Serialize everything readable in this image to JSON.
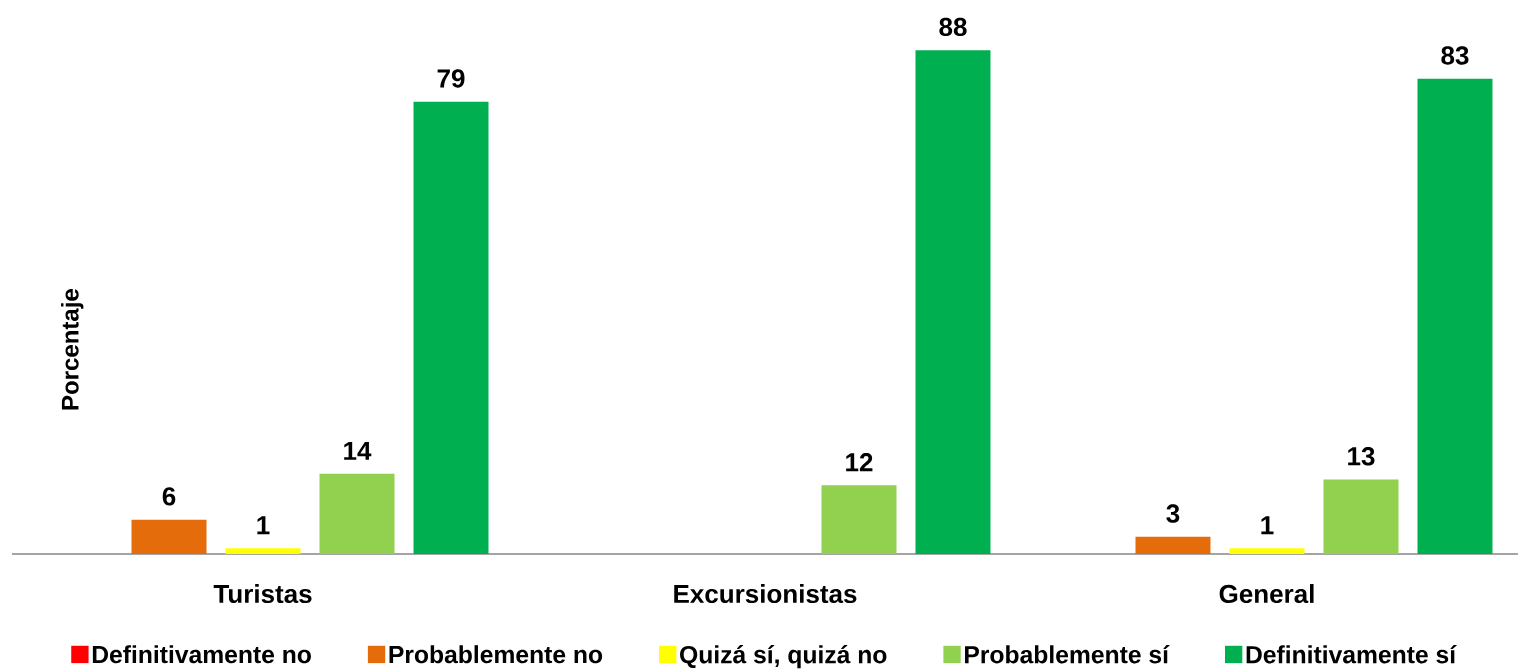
{
  "chart_data": {
    "type": "bar",
    "ylabel": "Porcentaje",
    "categories": [
      "Turistas",
      "Excursionistas",
      "General"
    ],
    "series": [
      {
        "name": "Definitivamente no",
        "color": "#ff0000",
        "values": [
          null,
          null,
          null
        ]
      },
      {
        "name": "Probablemente no",
        "color": "#e46c0a",
        "values": [
          6,
          null,
          3
        ]
      },
      {
        "name": "Quizá sí, quizá no",
        "color": "#ffff00",
        "values": [
          1,
          null,
          1
        ]
      },
      {
        "name": "Probablemente sí",
        "color": "#92d050",
        "values": [
          14,
          12,
          13
        ]
      },
      {
        "name": "Definitivamente sí",
        "color": "#00b050",
        "values": [
          79,
          88,
          83
        ]
      }
    ],
    "data_labels": true,
    "legend": "bottom"
  }
}
